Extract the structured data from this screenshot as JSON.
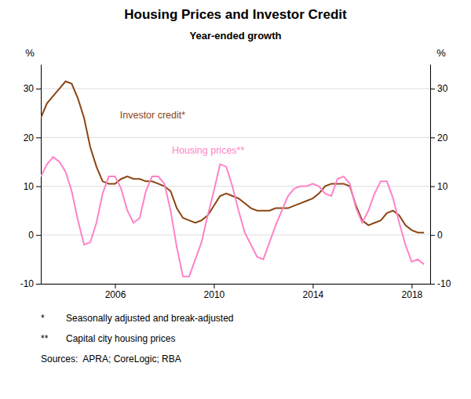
{
  "chart_data": {
    "type": "line",
    "title": "Housing Prices and Investor Credit",
    "subtitle": "Year-ended growth",
    "ylabel": "%",
    "y2label": "%",
    "xlim": [
      2003.0,
      2018.75
    ],
    "xticks": [
      2006,
      2010,
      2014,
      2018
    ],
    "ylim": [
      -10,
      35
    ],
    "yticks": [
      -10,
      0,
      10,
      20,
      30
    ],
    "y2lim": [
      -10,
      35
    ],
    "y2ticks": [
      -10,
      0,
      10,
      20,
      30
    ],
    "grid": true,
    "x": [
      2003.0,
      2003.25,
      2003.5,
      2003.75,
      2004.0,
      2004.25,
      2004.5,
      2004.75,
      2005.0,
      2005.25,
      2005.5,
      2005.75,
      2006.0,
      2006.25,
      2006.5,
      2006.75,
      2007.0,
      2007.25,
      2007.5,
      2007.75,
      2008.0,
      2008.25,
      2008.5,
      2008.75,
      2009.0,
      2009.25,
      2009.5,
      2009.75,
      2010.0,
      2010.25,
      2010.5,
      2010.75,
      2011.0,
      2011.25,
      2011.5,
      2011.75,
      2012.0,
      2012.25,
      2012.5,
      2012.75,
      2013.0,
      2013.25,
      2013.5,
      2013.75,
      2014.0,
      2014.25,
      2014.5,
      2014.75,
      2015.0,
      2015.25,
      2015.5,
      2015.75,
      2016.0,
      2016.25,
      2016.5,
      2016.75,
      2017.0,
      2017.25,
      2017.5,
      2017.75,
      2018.0,
      2018.25,
      2018.5
    ],
    "series": [
      {
        "color": "#8B4513",
        "values": [
          24.0,
          27.0,
          28.5,
          30.0,
          31.5,
          31.0,
          28.0,
          24.0,
          18.0,
          14.0,
          11.0,
          10.5,
          10.5,
          11.5,
          12.0,
          11.5,
          11.5,
          11.0,
          11.0,
          10.5,
          10.0,
          9.0,
          5.5,
          3.5,
          3.0,
          2.5,
          3.0,
          4.0,
          6.0,
          8.0,
          8.5,
          8.0,
          7.5,
          6.5,
          5.5,
          5.0,
          5.0,
          5.0,
          5.5,
          5.5,
          5.5,
          6.0,
          6.5,
          7.0,
          7.5,
          8.5,
          10.0,
          10.5,
          10.5,
          10.5,
          10.0,
          6.0,
          3.0,
          2.0,
          2.5,
          3.0,
          4.5,
          5.0,
          4.0,
          2.0,
          1.0,
          0.5,
          0.5
        ]
      },
      {
        "color": "#FF82C8",
        "values": [
          12.0,
          14.5,
          16.0,
          15.0,
          13.0,
          9.0,
          3.0,
          -2.0,
          -1.5,
          2.5,
          8.5,
          12.0,
          12.0,
          9.5,
          5.0,
          2.5,
          3.5,
          9.0,
          12.0,
          12.0,
          10.5,
          5.0,
          -2.5,
          -8.5,
          -8.5,
          -5.0,
          -1.5,
          4.0,
          9.0,
          14.5,
          14.0,
          10.0,
          5.0,
          0.5,
          -2.0,
          -4.5,
          -5.0,
          -1.5,
          2.0,
          5.0,
          8.0,
          9.5,
          10.0,
          10.0,
          10.5,
          10.0,
          8.5,
          8.0,
          11.5,
          12.0,
          10.5,
          5.5,
          2.5,
          5.0,
          8.5,
          11.0,
          11.0,
          7.5,
          2.5,
          -2.0,
          -5.5,
          -5.0,
          -6.0
        ]
      }
    ],
    "annotations": [
      {
        "text": "Investor credit*",
        "x": 2006.2,
        "y": 24.5
      },
      {
        "text": "Housing prices**",
        "x": 2008.3,
        "y": 17.2
      }
    ],
    "footnotes": [
      {
        "marker": "*",
        "text": "Seasonally adjusted and break-adjusted"
      },
      {
        "marker": "**",
        "text": "Capital city housing prices"
      },
      {
        "text": "Sources:  APRA; CoreLogic; RBA"
      }
    ]
  }
}
